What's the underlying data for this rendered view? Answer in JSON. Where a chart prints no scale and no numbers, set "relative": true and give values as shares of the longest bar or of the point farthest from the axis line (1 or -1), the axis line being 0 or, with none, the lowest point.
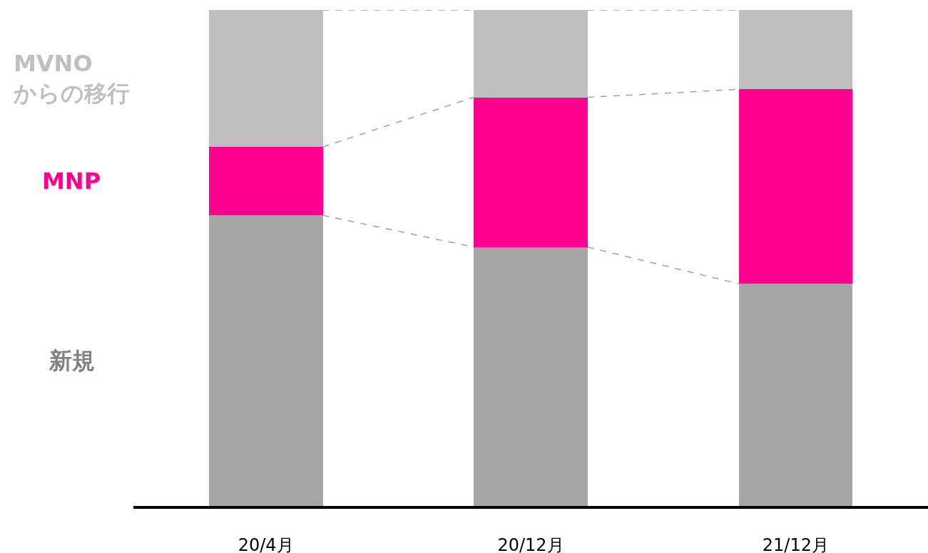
{
  "chart_data": {
    "type": "bar",
    "stacked": true,
    "relative": true,
    "legend": false,
    "categories": [
      "20/4月",
      "20/12月",
      "21/12月"
    ],
    "series": [
      {
        "name": "新規",
        "color": "#a6a6a6",
        "values": [
          0.586,
          0.522,
          0.448
        ]
      },
      {
        "name": "MNP",
        "color": "#ff0090",
        "values": [
          0.138,
          0.302,
          0.392
        ]
      },
      {
        "name": "MVNOからの移行",
        "color": "#bfbfbf",
        "values": [
          0.276,
          0.176,
          0.16
        ]
      }
    ]
  }
}
